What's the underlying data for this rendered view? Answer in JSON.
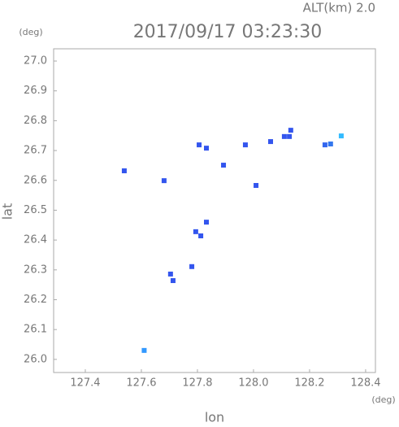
{
  "chart_data": {
    "type": "scatter",
    "title": "2017/09/17 03:23:30",
    "subtitle": "ALT(km) 2.0",
    "x_label": "lon",
    "x_unit": "(deg)",
    "y_label": "lat",
    "y_unit": "(deg)",
    "xlim": [
      127.287,
      128.435
    ],
    "ylim": [
      25.956,
      27.041
    ],
    "xticks": [
      127.4,
      127.6,
      127.8,
      {
        "value": 128,
        "label": "128.0"
      },
      128.2,
      128.4
    ],
    "yticks": [
      {
        "value": 26,
        "label": "26.0"
      },
      26.1,
      26.2,
      26.3,
      26.4,
      26.5,
      26.6,
      26.7,
      26.8,
      26.9,
      {
        "value": 27,
        "label": "27.0"
      }
    ],
    "series": [
      {
        "x": [
          127.61,
          127.713,
          127.704,
          127.78,
          127.794,
          127.812,
          127.832,
          127.806,
          127.832,
          127.893,
          127.971,
          128.061,
          128.11,
          128.133,
          128.128,
          128.255,
          128.275,
          128.313,
          127.539,
          128.009,
          127.681
        ],
        "values": [
          26.03,
          26.264,
          26.286,
          26.311,
          26.428,
          26.414,
          26.46,
          26.719,
          26.708,
          26.651,
          26.719,
          26.73,
          26.747,
          26.768,
          26.747,
          26.719,
          26.722,
          26.749,
          26.632,
          26.583,
          26.599
        ],
        "colors": [
          "#3399ff",
          "#3355ee",
          "#3355ee",
          "#3355ee",
          "#3355ee",
          "#3355ee",
          "#3355ee",
          "#3355ee",
          "#3355ee",
          "#3355ee",
          "#3355ee",
          "#3355ee",
          "#3355ee",
          "#3355ee",
          "#3355ee",
          "#3366ee",
          "#3377ee",
          "#33bbff",
          "#3355ee",
          "#3355ee",
          "#3355ee"
        ]
      }
    ]
  }
}
